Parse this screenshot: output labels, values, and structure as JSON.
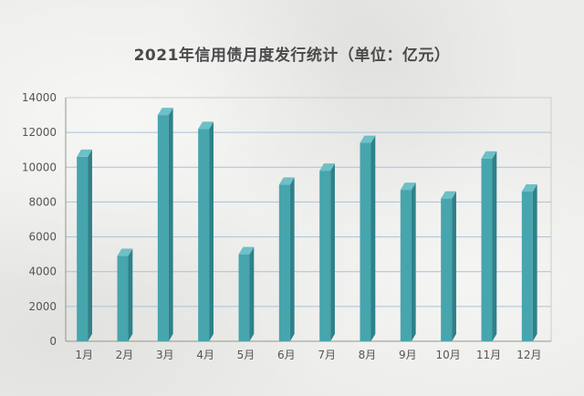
{
  "chart_data": {
    "type": "bar",
    "title": "2021年信用债月度发行统计（单位：亿元）",
    "xlabel": "",
    "ylabel": "",
    "categories": [
      "1月",
      "2月",
      "3月",
      "4月",
      "5月",
      "6月",
      "7月",
      "8月",
      "9月",
      "10月",
      "11月",
      "12月"
    ],
    "values": [
      10600,
      4900,
      13000,
      12200,
      5000,
      9000,
      9800,
      11400,
      8700,
      8200,
      10500,
      8600
    ],
    "ylim": [
      0,
      14000
    ],
    "yticks": [
      "0",
      "2000",
      "4000",
      "6000",
      "8000",
      "10000",
      "12000",
      "14000"
    ],
    "grid": true,
    "legend": "none",
    "colors": {
      "bar_front": "#46a5ad",
      "bar_side": "#2f8189",
      "bar_top": "#6cc0c6",
      "grid": "#a9c2d6",
      "axis": "#8e9a87"
    }
  }
}
